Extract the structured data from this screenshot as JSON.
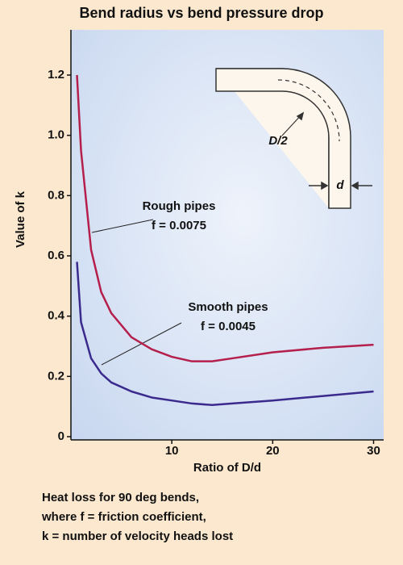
{
  "chart_data": {
    "type": "line",
    "title": "Bend radius vs bend pressure drop",
    "x_label": "Ratio of D/d",
    "y_label": "Value of k",
    "xlim": [
      0,
      31
    ],
    "ylim": [
      0,
      1.35
    ],
    "xticks": [
      10,
      20,
      30
    ],
    "yticks": [
      0,
      0.2,
      0.4,
      0.6,
      0.8,
      {
        "value": 1,
        "label": "1.0"
      },
      1.2
    ],
    "x": [
      0.6,
      1,
      2,
      3,
      4,
      6,
      8,
      10,
      12,
      14,
      16,
      20,
      25,
      30
    ],
    "series": [
      {
        "name": "Rough pipes",
        "note": "f = 0.0075",
        "color": "#b51f4c",
        "values": [
          1.2,
          0.95,
          0.62,
          0.48,
          0.41,
          0.33,
          0.29,
          0.265,
          0.25,
          0.25,
          0.26,
          0.28,
          0.295,
          0.305
        ]
      },
      {
        "name": "Smooth pipes",
        "note": "f = 0.0045",
        "color": "#3b2a8e",
        "values": [
          0.58,
          0.38,
          0.26,
          0.21,
          0.18,
          0.15,
          0.13,
          0.12,
          0.11,
          0.105,
          0.11,
          0.12,
          0.135,
          0.15
        ]
      }
    ],
    "diagram_labels": [
      "D/2",
      "d"
    ],
    "caption": [
      "Heat loss for 90 deg bends,",
      "where f = friction coefficient,",
      "k = number of velocity heads lost"
    ]
  }
}
